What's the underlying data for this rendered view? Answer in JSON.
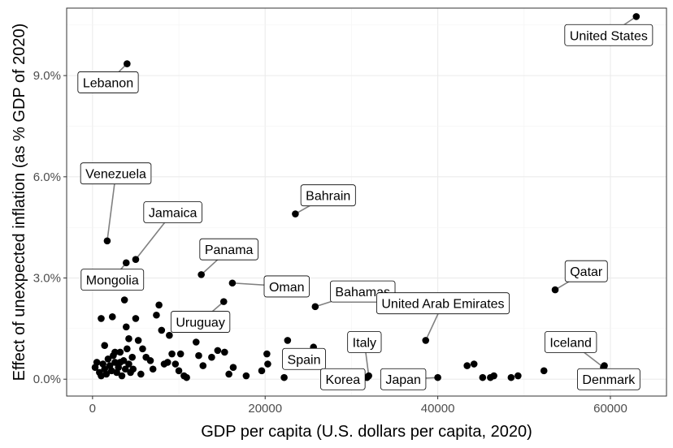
{
  "chart_data": {
    "type": "scatter",
    "title": "",
    "xlabel": "GDP per capita  (U.S. dollars per capita, 2020)",
    "ylabel": "Effect of unexpected inflation (as % GDP of 2020)",
    "xlim": [
      -3000,
      66500
    ],
    "ylim": [
      -0.5,
      11.0
    ],
    "x_ticks": [
      0,
      20000,
      40000,
      60000
    ],
    "x_tick_labels": [
      "0",
      "20000",
      "40000",
      "60000"
    ],
    "y_ticks": [
      0,
      3,
      6,
      9
    ],
    "y_tick_labels": [
      "0.0%",
      "3.0%",
      "6.0%",
      "9.0%"
    ],
    "grid": true,
    "points": [
      {
        "x": 63000,
        "y": 10.75,
        "label": "United States"
      },
      {
        "x": 4000,
        "y": 9.35,
        "label": "Lebanon"
      },
      {
        "x": 23500,
        "y": 4.9,
        "label": "Bahrain"
      },
      {
        "x": 1700,
        "y": 4.1,
        "label": "Venezuela"
      },
      {
        "x": 5000,
        "y": 3.55,
        "label": "Jamaica"
      },
      {
        "x": 3900,
        "y": 3.45,
        "label": "Mongolia"
      },
      {
        "x": 12600,
        "y": 3.1,
        "label": "Panama"
      },
      {
        "x": 16200,
        "y": 2.85,
        "label": "Oman"
      },
      {
        "x": 25800,
        "y": 2.15,
        "label": "Bahamas"
      },
      {
        "x": 15200,
        "y": 2.3,
        "label": "Uruguay"
      },
      {
        "x": 53600,
        "y": 2.65,
        "label": "Qatar"
      },
      {
        "x": 38600,
        "y": 1.15,
        "label": "United Arab Emirates"
      },
      {
        "x": 59200,
        "y": 0.35,
        "label": "Iceland"
      },
      {
        "x": 59300,
        "y": 0.4,
        "label": "Denmark"
      },
      {
        "x": 32000,
        "y": 0.1,
        "label": "Italy"
      },
      {
        "x": 22500,
        "y": 0.8,
        "label": "Spain"
      },
      {
        "x": 31800,
        "y": 0.05,
        "label": "Korea"
      },
      {
        "x": 40000,
        "y": 0.05,
        "label": "Japan"
      },
      {
        "x": 300,
        "y": 0.35
      },
      {
        "x": 500,
        "y": 0.5
      },
      {
        "x": 800,
        "y": 0.2
      },
      {
        "x": 1000,
        "y": 0.1
      },
      {
        "x": 1200,
        "y": 0.45
      },
      {
        "x": 1400,
        "y": 0.3
      },
      {
        "x": 1600,
        "y": 0.15
      },
      {
        "x": 1800,
        "y": 0.6
      },
      {
        "x": 2000,
        "y": 0.4
      },
      {
        "x": 2200,
        "y": 0.25
      },
      {
        "x": 2400,
        "y": 0.7
      },
      {
        "x": 2600,
        "y": 0.5
      },
      {
        "x": 2800,
        "y": 0.2
      },
      {
        "x": 3000,
        "y": 0.35
      },
      {
        "x": 3200,
        "y": 0.8
      },
      {
        "x": 3400,
        "y": 0.1
      },
      {
        "x": 3600,
        "y": 0.55
      },
      {
        "x": 3800,
        "y": 0.3
      },
      {
        "x": 4000,
        "y": 0.9
      },
      {
        "x": 4200,
        "y": 0.45
      },
      {
        "x": 4400,
        "y": 0.2
      },
      {
        "x": 4600,
        "y": 0.65
      },
      {
        "x": 1000,
        "y": 1.8
      },
      {
        "x": 1400,
        "y": 1.0
      },
      {
        "x": 2300,
        "y": 1.85
      },
      {
        "x": 2600,
        "y": 0.8
      },
      {
        "x": 3200,
        "y": 0.5
      },
      {
        "x": 3700,
        "y": 2.35
      },
      {
        "x": 3900,
        "y": 1.55
      },
      {
        "x": 4200,
        "y": 1.2
      },
      {
        "x": 4700,
        "y": 0.3
      },
      {
        "x": 5000,
        "y": 1.8
      },
      {
        "x": 5300,
        "y": 1.15
      },
      {
        "x": 5600,
        "y": 0.15
      },
      {
        "x": 5800,
        "y": 0.9
      },
      {
        "x": 6200,
        "y": 0.65
      },
      {
        "x": 6700,
        "y": 0.55
      },
      {
        "x": 7000,
        "y": 0.3
      },
      {
        "x": 7400,
        "y": 1.9
      },
      {
        "x": 7700,
        "y": 2.2
      },
      {
        "x": 8000,
        "y": 1.45
      },
      {
        "x": 8300,
        "y": 0.45
      },
      {
        "x": 8700,
        "y": 0.5
      },
      {
        "x": 8900,
        "y": 1.3
      },
      {
        "x": 9200,
        "y": 0.75
      },
      {
        "x": 9600,
        "y": 0.45
      },
      {
        "x": 10000,
        "y": 0.25
      },
      {
        "x": 10200,
        "y": 0.75
      },
      {
        "x": 10600,
        "y": 0.1
      },
      {
        "x": 10900,
        "y": 0.05
      },
      {
        "x": 12000,
        "y": 1.1
      },
      {
        "x": 12300,
        "y": 0.7
      },
      {
        "x": 12800,
        "y": 0.4
      },
      {
        "x": 13800,
        "y": 0.65
      },
      {
        "x": 14500,
        "y": 0.85
      },
      {
        "x": 15300,
        "y": 0.8
      },
      {
        "x": 15800,
        "y": 0.15
      },
      {
        "x": 16300,
        "y": 0.35
      },
      {
        "x": 17800,
        "y": 0.1
      },
      {
        "x": 19600,
        "y": 0.25
      },
      {
        "x": 20200,
        "y": 0.75
      },
      {
        "x": 20300,
        "y": 0.45
      },
      {
        "x": 22200,
        "y": 0.05
      },
      {
        "x": 22600,
        "y": 1.15
      },
      {
        "x": 25600,
        "y": 0.95
      },
      {
        "x": 43400,
        "y": 0.4
      },
      {
        "x": 44200,
        "y": 0.45
      },
      {
        "x": 45200,
        "y": 0.05
      },
      {
        "x": 46100,
        "y": 0.05
      },
      {
        "x": 46500,
        "y": 0.1
      },
      {
        "x": 48500,
        "y": 0.05
      },
      {
        "x": 49300,
        "y": 0.1
      },
      {
        "x": 52300,
        "y": 0.25
      }
    ],
    "labels": [
      {
        "text": "United States",
        "x": 59800,
        "y": 10.2,
        "lx": 63000,
        "ly": 10.75
      },
      {
        "text": "Lebanon",
        "x": 1800,
        "y": 8.8,
        "lx": 4000,
        "ly": 9.35
      },
      {
        "text": "Venezuela",
        "x": 2700,
        "y": 6.1,
        "lx": 1700,
        "ly": 4.1
      },
      {
        "text": "Jamaica",
        "x": 9300,
        "y": 4.95,
        "lx": 5000,
        "ly": 3.55
      },
      {
        "text": "Bahrain",
        "x": 27300,
        "y": 5.45,
        "lx": 23500,
        "ly": 4.9
      },
      {
        "text": "Panama",
        "x": 15800,
        "y": 3.85,
        "lx": 12600,
        "ly": 3.1
      },
      {
        "text": "Mongolia",
        "x": 2300,
        "y": 2.95,
        "lx": 3900,
        "ly": 3.45
      },
      {
        "text": "Oman",
        "x": 22500,
        "y": 2.75,
        "lx": 16200,
        "ly": 2.85
      },
      {
        "text": "Bahamas",
        "x": 31300,
        "y": 2.6,
        "lx": 25800,
        "ly": 2.15
      },
      {
        "text": "United Arab Emirates",
        "x": 40600,
        "y": 2.25,
        "lx": 38600,
        "ly": 1.15
      },
      {
        "text": "Qatar",
        "x": 57200,
        "y": 3.2,
        "lx": 53600,
        "ly": 2.65
      },
      {
        "text": "Uruguay",
        "x": 12500,
        "y": 1.7,
        "lx": 15200,
        "ly": 2.3
      },
      {
        "text": "Italy",
        "x": 31500,
        "y": 1.1,
        "lx": 32000,
        "ly": 0.1
      },
      {
        "text": "Iceland",
        "x": 55400,
        "y": 1.1,
        "lx": 59200,
        "ly": 0.35
      },
      {
        "text": "Spain",
        "x": 24500,
        "y": 0.6,
        "lx": 22500,
        "ly": 0.8
      },
      {
        "text": "Korea",
        "x": 29000,
        "y": 0.0,
        "lx": 31800,
        "ly": 0.05
      },
      {
        "text": "Japan",
        "x": 36000,
        "y": 0.0,
        "lx": 40000,
        "ly": 0.05
      },
      {
        "text": "Denmark",
        "x": 59800,
        "y": 0.0,
        "lx": 59300,
        "ly": 0.4
      }
    ]
  }
}
